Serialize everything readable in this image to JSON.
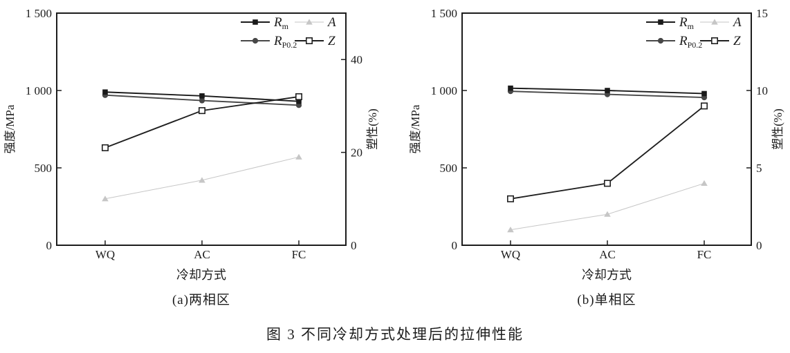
{
  "figure": {
    "caption": "图 3 不同冷却方式处理后的拉伸性能",
    "ink_color": "#1c1c1c",
    "background_color": "#ffffff"
  },
  "chart_data": [
    {
      "type": "line",
      "subtitle": "(a)两相区",
      "categories": [
        "WQ",
        "AC",
        "FC"
      ],
      "xlabel": "冷却方式",
      "ylabel_left": "强度/MPa",
      "ylabel_right": "塑性(%)",
      "ylim_left": [
        0,
        1500
      ],
      "yticks_left": [
        {
          "value": 0,
          "label": "0"
        },
        {
          "value": 500,
          "label": "500"
        },
        {
          "value": 1000,
          "label": "1 000"
        },
        {
          "value": 1500,
          "label": "1 500"
        }
      ],
      "ylim_right": [
        0,
        50
      ],
      "yticks_right": [
        {
          "value": 0,
          "label": "0"
        },
        {
          "value": 20,
          "label": "20"
        },
        {
          "value": 40,
          "label": "40"
        }
      ],
      "grid": false,
      "legend_position": "top-right-inside",
      "series": [
        {
          "name": "Rm",
          "label": "R",
          "label_sub": "m",
          "axis": "left",
          "marker": "square-filled",
          "color": "#1a1a1a",
          "values": [
            990,
            965,
            930
          ]
        },
        {
          "name": "RP0.2",
          "label": "R",
          "label_sub": "P0.2",
          "axis": "left",
          "marker": "circle-filled",
          "color": "#474747",
          "values": [
            970,
            935,
            905
          ]
        },
        {
          "name": "A",
          "label": "A",
          "label_sub": "",
          "axis": "right",
          "marker": "triangle-filled",
          "color": "#c6c6c6",
          "values": [
            10,
            14,
            19
          ]
        },
        {
          "name": "Z",
          "label": "Z",
          "label_sub": "",
          "axis": "right",
          "marker": "square-open",
          "color": "#1f1f1f",
          "values": [
            21,
            29,
            32
          ]
        }
      ]
    },
    {
      "type": "line",
      "subtitle": "(b)单相区",
      "categories": [
        "WQ",
        "AC",
        "FC"
      ],
      "xlabel": "冷却方式",
      "ylabel_left": "强度/MPa",
      "ylabel_right": "塑性(%)",
      "ylim_left": [
        0,
        1500
      ],
      "yticks_left": [
        {
          "value": 0,
          "label": "0"
        },
        {
          "value": 500,
          "label": "500"
        },
        {
          "value": 1000,
          "label": "1 000"
        },
        {
          "value": 1500,
          "label": "1 500"
        }
      ],
      "ylim_right": [
        0,
        15
      ],
      "yticks_right": [
        {
          "value": 0,
          "label": "0"
        },
        {
          "value": 5,
          "label": "5"
        },
        {
          "value": 10,
          "label": "10"
        },
        {
          "value": 15,
          "label": "15"
        }
      ],
      "grid": false,
      "legend_position": "top-right-inside",
      "series": [
        {
          "name": "Rm",
          "label": "R",
          "label_sub": "m",
          "axis": "left",
          "marker": "square-filled",
          "color": "#1a1a1a",
          "values": [
            1015,
            1000,
            980
          ]
        },
        {
          "name": "RP0.2",
          "label": "R",
          "label_sub": "P0.2",
          "axis": "left",
          "marker": "circle-filled",
          "color": "#474747",
          "values": [
            995,
            975,
            955
          ]
        },
        {
          "name": "A",
          "label": "A",
          "label_sub": "",
          "axis": "right",
          "marker": "triangle-filled",
          "color": "#c6c6c6",
          "values": [
            1,
            2,
            4
          ]
        },
        {
          "name": "Z",
          "label": "Z",
          "label_sub": "",
          "axis": "right",
          "marker": "square-open",
          "color": "#1f1f1f",
          "values": [
            3,
            4,
            9
          ]
        }
      ]
    }
  ]
}
